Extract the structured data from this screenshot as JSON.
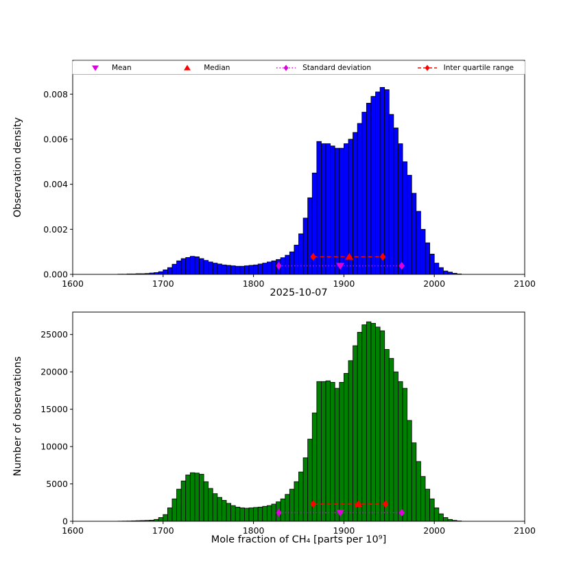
{
  "figure": {
    "background": "#ffffff"
  },
  "palette": {
    "magenta": "#dd00dd",
    "red": "#ff0000",
    "blue": "#0000ff",
    "green": "#008000",
    "edge": "#000000"
  },
  "legend": {
    "items": [
      {
        "label": "Mean",
        "marker": "triangle-down",
        "line": "none",
        "color": "#dd00dd"
      },
      {
        "label": "Median",
        "marker": "triangle-up",
        "line": "none",
        "color": "#ff0000"
      },
      {
        "label": "Standard deviation",
        "marker": "diamond",
        "line": "dotted",
        "color": "#dd00dd"
      },
      {
        "label": "Inter quartile range",
        "marker": "diamond",
        "line": "dashed",
        "color": "#ff0000"
      }
    ]
  },
  "chart_data": [
    {
      "type": "bar",
      "name": "density-histogram",
      "xlabel": "2025-10-07",
      "ylabel": "Observation density",
      "bar_color": "#0000ff",
      "edge_color": "#000000",
      "xlim": [
        1600,
        2100
      ],
      "ylim": [
        0,
        0.0095
      ],
      "xticks": [
        1600,
        1700,
        1800,
        1900,
        2000,
        2100
      ],
      "yticks": [
        0.0,
        0.002,
        0.004,
        0.006,
        0.008
      ],
      "ytick_labels": [
        "0.000",
        "0.002",
        "0.004",
        "0.006",
        "0.008"
      ],
      "bin_start": 1650,
      "bin_width": 5,
      "values": [
        1e-05,
        1e-05,
        2e-05,
        2e-05,
        3e-05,
        3e-05,
        4e-05,
        6e-05,
        8e-05,
        0.00012,
        0.0002,
        0.0003,
        0.00045,
        0.0006,
        0.0007,
        0.00075,
        0.0008,
        0.00078,
        0.0007,
        0.00062,
        0.00055,
        0.0005,
        0.00046,
        0.00042,
        0.0004,
        0.00038,
        0.00036,
        0.00036,
        0.00038,
        0.0004,
        0.00042,
        0.00046,
        0.0005,
        0.00055,
        0.0006,
        0.00066,
        0.00074,
        0.00085,
        0.001,
        0.0013,
        0.0018,
        0.0025,
        0.0034,
        0.0045,
        0.0059,
        0.0058,
        0.0058,
        0.0057,
        0.0056,
        0.0056,
        0.0058,
        0.006,
        0.0063,
        0.0067,
        0.0072,
        0.0076,
        0.0079,
        0.0081,
        0.0083,
        0.0082,
        0.0071,
        0.0065,
        0.0058,
        0.005,
        0.0044,
        0.0036,
        0.0028,
        0.002,
        0.0014,
        0.0009,
        0.0005,
        0.0003,
        0.00015,
        0.0001,
        5e-05,
        2e-05
      ],
      "stats": {
        "mean": 1896,
        "median": 1906,
        "std_range": [
          1828,
          1964
        ],
        "iqr": [
          1866,
          1943
        ],
        "mean_y": 0.00038,
        "median_y": 0.00078,
        "std_y": 0.00038,
        "iqr_y": 0.00078
      }
    },
    {
      "type": "bar",
      "name": "counts-histogram",
      "xlabel": "Mole fraction of CH₄ [parts per 10⁹]",
      "ylabel": "Number of observations",
      "bar_color": "#008000",
      "edge_color": "#000000",
      "xlim": [
        1600,
        2100
      ],
      "ylim": [
        0,
        28000
      ],
      "xticks": [
        1600,
        1700,
        1800,
        1900,
        2000,
        2100
      ],
      "yticks": [
        0,
        5000,
        10000,
        15000,
        20000,
        25000
      ],
      "ytick_labels": [
        "0",
        "5000",
        "10000",
        "15000",
        "20000",
        "25000"
      ],
      "bin_start": 1650,
      "bin_width": 5,
      "values": [
        20,
        30,
        40,
        60,
        80,
        100,
        120,
        150,
        250,
        500,
        900,
        1800,
        3000,
        4300,
        5400,
        6200,
        6500,
        6450,
        6300,
        5300,
        4400,
        3700,
        3200,
        2800,
        2400,
        2100,
        1900,
        1800,
        1750,
        1800,
        1850,
        1900,
        2000,
        2100,
        2300,
        2600,
        3000,
        3600,
        4300,
        5300,
        6600,
        8500,
        11000,
        14500,
        18700,
        18700,
        18800,
        18600,
        17800,
        18600,
        19800,
        21500,
        23500,
        25300,
        26300,
        26700,
        26500,
        26000,
        25500,
        23000,
        21800,
        20000,
        18700,
        17800,
        13500,
        10500,
        8000,
        6000,
        4300,
        3000,
        1800,
        1000,
        500,
        250,
        120,
        50
      ],
      "stats": {
        "mean": 1896,
        "median": 1916,
        "std_range": [
          1828,
          1964
        ],
        "iqr": [
          1866,
          1946
        ],
        "mean_y": 1150,
        "median_y": 2300,
        "std_y": 1150,
        "iqr_y": 2300
      }
    }
  ]
}
